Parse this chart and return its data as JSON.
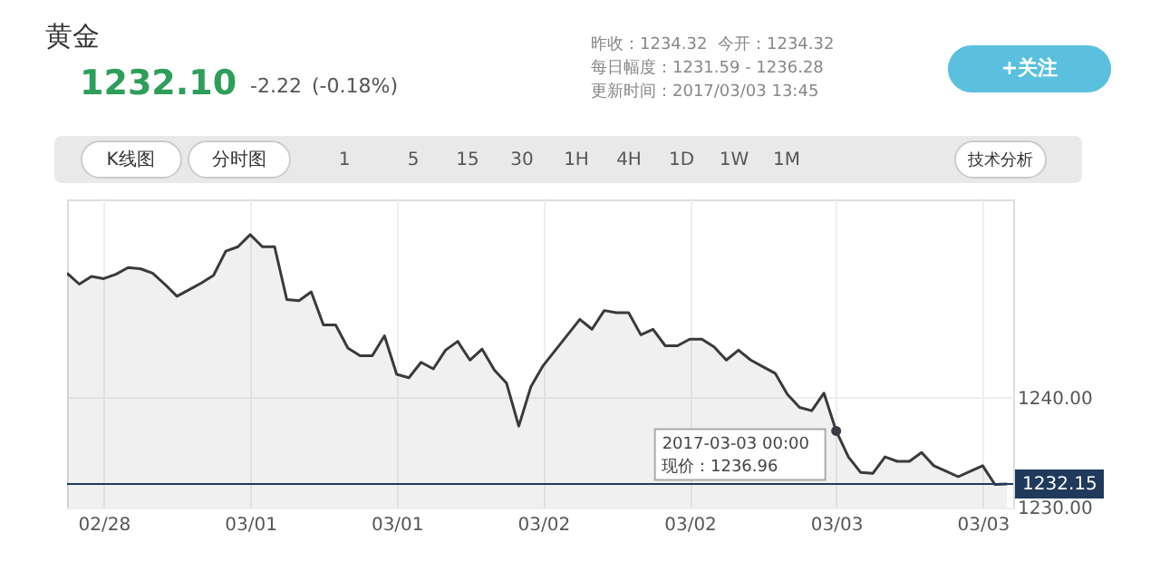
{
  "chart_data": {
    "type": "area",
    "title": "黄金",
    "categories": [
      null,
      null,
      null,
      "02/28",
      null,
      null,
      null,
      null,
      null,
      null,
      null,
      null,
      null,
      null,
      null,
      "03/01",
      null,
      null,
      null,
      null,
      null,
      null,
      null,
      null,
      null,
      null,
      null,
      "03/01",
      null,
      null,
      null,
      null,
      null,
      null,
      null,
      null,
      null,
      null,
      null,
      "03/02",
      null,
      null,
      null,
      null,
      null,
      null,
      null,
      null,
      null,
      null,
      null,
      "03/02",
      null,
      null,
      null,
      null,
      null,
      null,
      null,
      null,
      null,
      null,
      null,
      "03/03",
      null,
      null,
      null,
      null,
      null,
      null,
      null,
      null,
      null,
      null,
      null,
      "03/03",
      null,
      null
    ],
    "series": [
      {
        "color": "#3a3a3a",
        "values": [
          1251.3,
          1250.3,
          1251.0,
          1250.8,
          1251.2,
          1251.8,
          1251.7,
          1251.3,
          1250.3,
          1249.2,
          1249.8,
          1250.4,
          1251.1,
          1253.3,
          1253.7,
          1254.8,
          1253.7,
          1253.7,
          1248.9,
          1248.8,
          1249.6,
          1246.6,
          1246.6,
          1244.5,
          1243.8,
          1243.8,
          1245.6,
          1242.1,
          1241.8,
          1243.2,
          1242.6,
          1244.3,
          1245.1,
          1243.4,
          1244.4,
          1242.5,
          1241.3,
          1237.4,
          1241.0,
          1242.9,
          1244.3,
          1245.7,
          1247.1,
          1246.2,
          1247.9,
          1247.7,
          1247.7,
          1245.7,
          1246.2,
          1244.7,
          1244.7,
          1245.3,
          1245.3,
          1244.6,
          1243.4,
          1244.3,
          1243.4,
          1242.8,
          1242.2,
          1240.3,
          1239.1,
          1238.8,
          1240.4,
          1236.96,
          1234.6,
          1233.2,
          1233.1,
          1234.6,
          1234.2,
          1234.2,
          1235.0,
          1233.8,
          1233.3,
          1232.8,
          1233.3,
          1233.8,
          1232.1,
          1232.15
        ]
      }
    ],
    "ylim": [
      1230,
      1258
    ],
    "yticks": [
      {
        "value": 1230,
        "label": "1230.00"
      },
      {
        "value": 1240,
        "label": "1240.00"
      }
    ],
    "grid": true,
    "ref_lines": [
      {
        "axis": "y",
        "value": 1232.15,
        "label": "1232.15",
        "color": "#1f3a5a"
      }
    ],
    "annotations": [
      "1232.10",
      "-2.22",
      "(-0.18%)",
      "昨收：1234.32",
      "今开：1234.32",
      "每日幅度：1231.59 - 1236.28",
      "更新时间：2017/03/03 13:45",
      "+关注",
      "K线图",
      "分时图",
      "15",
      "30",
      "1",
      "5",
      "1H",
      "4H",
      "1D",
      "1W",
      "1M",
      "技术分析",
      "现价：1236.96",
      {
        "text": "2017-03-03 00:00",
        "x": "03/03",
        "y": 1236.96
      }
    ]
  }
}
